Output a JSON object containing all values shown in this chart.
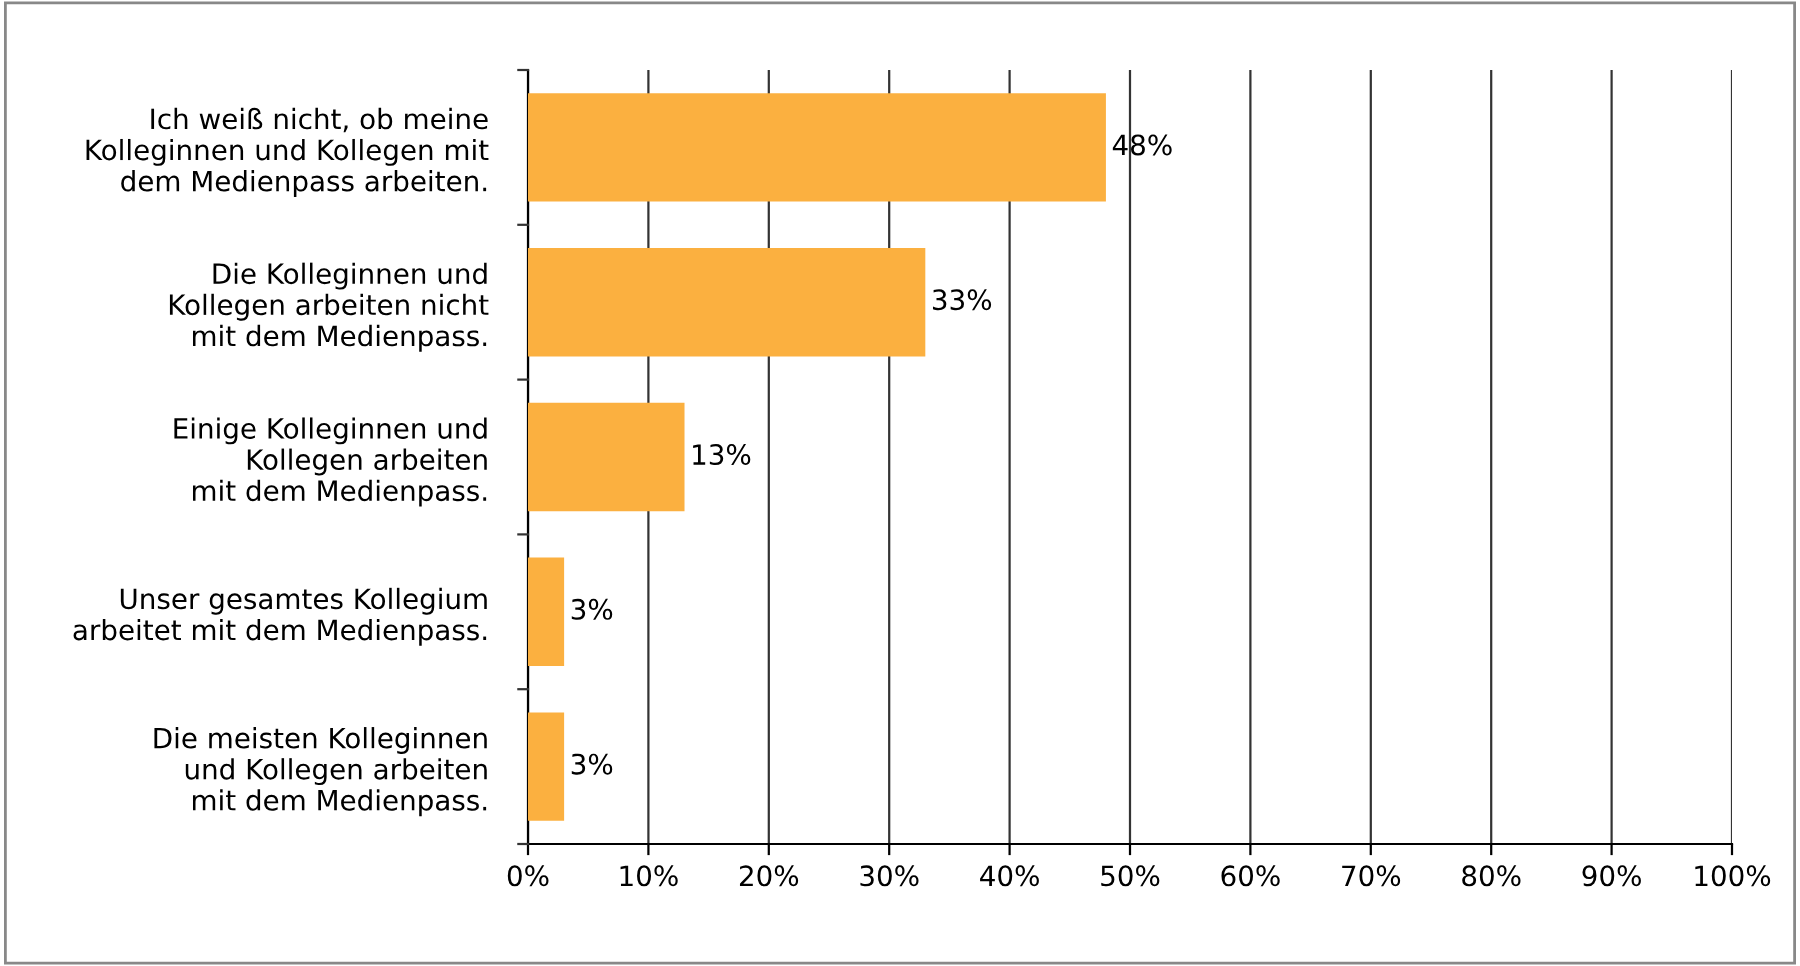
{
  "chart_data": {
    "type": "bar",
    "orientation": "horizontal",
    "categories": [
      "Ich weiß nicht, ob meine\nKolleginnen und Kollegen mit\ndem Medienpass arbeiten.",
      "Die Kolleginnen und\nKollegen arbeiten nicht\nmit dem Medienpass.",
      "Einige Kolleginnen und\nKollegen arbeiten\nmit dem Medienpass.",
      "Unser gesamtes Kollegium\narbeitet mit dem Medienpass.",
      "Die meisten Kolleginnen\nund Kollegen arbeiten\nmit dem Medienpass."
    ],
    "values": [
      48,
      33,
      13,
      3,
      3
    ],
    "value_labels": [
      "48%",
      "33%",
      "13%",
      "3%",
      "3%"
    ],
    "color": "#fbb040",
    "xlim": [
      0,
      100
    ],
    "xticks": [
      {
        "value": 0,
        "label": "0%"
      },
      {
        "value": 10,
        "label": "10%"
      },
      {
        "value": 20,
        "label": "20%"
      },
      {
        "value": 30,
        "label": "30%"
      },
      {
        "value": 40,
        "label": "40%"
      },
      {
        "value": 50,
        "label": "50%"
      },
      {
        "value": 60,
        "label": "60%"
      },
      {
        "value": 70,
        "label": "70%"
      },
      {
        "value": 80,
        "label": "80%"
      },
      {
        "value": 90,
        "label": "90%"
      },
      {
        "value": 100,
        "label": "100%"
      }
    ],
    "grid": "x",
    "legend": false
  }
}
